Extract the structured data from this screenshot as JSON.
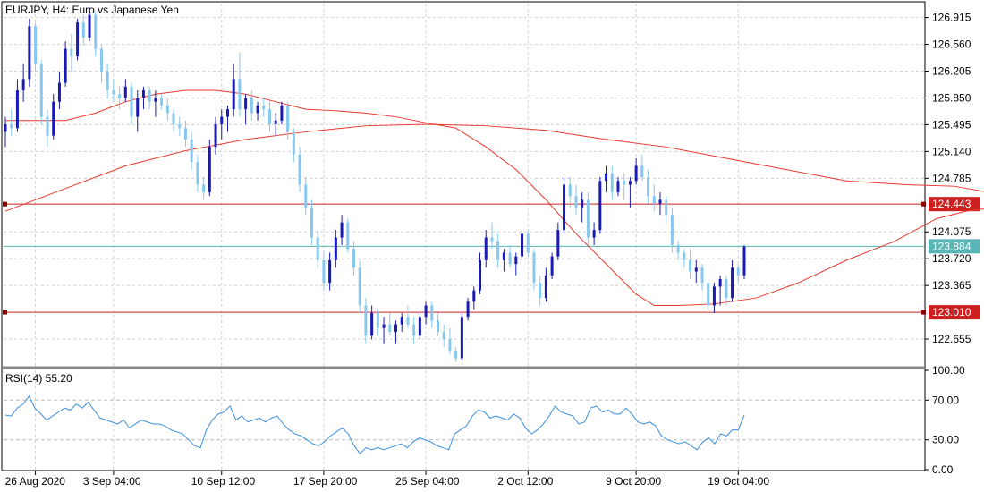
{
  "header": {
    "title": "EURJPY, H4:  Euro vs Japanese Yen",
    "rsi_label": "RSI(14) 55.20"
  },
  "colors": {
    "bull": "#1a1ab5",
    "bear": "#87c8ee",
    "ma": "#e8392f",
    "level_line": "#cc2020",
    "price_line": "#5ab4b4",
    "rsi_line": "#3a8ee0",
    "grid": "#d0d0d0"
  },
  "chart_data": [
    {
      "type": "candlestick",
      "name": "price",
      "ylim": [
        122.3,
        127.1
      ],
      "yticks": [
        "126.915",
        "126.560",
        "126.205",
        "125.850",
        "125.495",
        "125.140",
        "124.785",
        "124.075",
        "123.720",
        "123.365",
        "122.655"
      ],
      "xticks": [
        "26 Aug 2020",
        "3 Sep 04:00",
        "10 Sep 12:00",
        "17 Sep 20:00",
        "25 Sep 04:00",
        "2 Oct 12:00",
        "9 Oct 20:00",
        "19 Oct 04:00"
      ],
      "horizontal_levels": [
        {
          "value": 124.443,
          "label": "124.443",
          "kind": "level"
        },
        {
          "value": 123.884,
          "label": "123.884",
          "kind": "current"
        },
        {
          "value": 123.01,
          "label": "123.010",
          "kind": "level"
        }
      ],
      "series": [
        {
          "type": "line",
          "role": "moving-average",
          "values": [
            [
              0,
              125.55
            ],
            [
              5,
              125.55
            ],
            [
              10,
              125.55
            ],
            [
              15,
              125.65
            ],
            [
              20,
              125.8
            ],
            [
              25,
              125.9
            ],
            [
              30,
              125.95
            ],
            [
              35,
              125.95
            ],
            [
              40,
              125.9
            ],
            [
              45,
              125.8
            ],
            [
              50,
              125.7
            ],
            [
              55,
              125.68
            ],
            [
              60,
              125.65
            ],
            [
              65,
              125.6
            ],
            [
              70,
              125.52
            ],
            [
              75,
              125.45
            ],
            [
              80,
              125.2
            ],
            [
              85,
              124.9
            ],
            [
              90,
              124.5
            ],
            [
              95,
              124.05
            ],
            [
              100,
              123.65
            ],
            [
              105,
              123.25
            ],
            [
              108,
              123.1
            ],
            [
              112,
              123.1
            ],
            [
              118,
              123.12
            ],
            [
              125,
              123.2
            ],
            [
              132,
              123.4
            ],
            [
              140,
              123.7
            ],
            [
              148,
              123.95
            ],
            [
              155,
              124.25
            ],
            [
              160,
              124.35
            ],
            [
              165,
              124.4
            ],
            [
              170,
              124.35
            ],
            [
              175,
              124.2
            ]
          ]
        },
        {
          "type": "line",
          "role": "moving-average",
          "values": [
            [
              0,
              124.35
            ],
            [
              10,
              124.65
            ],
            [
              20,
              124.95
            ],
            [
              30,
              125.15
            ],
            [
              40,
              125.3
            ],
            [
              50,
              125.4
            ],
            [
              60,
              125.48
            ],
            [
              70,
              125.5
            ],
            [
              80,
              125.48
            ],
            [
              90,
              125.42
            ],
            [
              100,
              125.3
            ],
            [
              110,
              125.2
            ],
            [
              120,
              125.05
            ],
            [
              130,
              124.9
            ],
            [
              140,
              124.75
            ],
            [
              150,
              124.7
            ],
            [
              158,
              124.68
            ],
            [
              165,
              124.58
            ],
            [
              170,
              124.48
            ],
            [
              175,
              124.32
            ]
          ]
        }
      ],
      "candles": [
        [
          125.4,
          125.6,
          125.2,
          125.5
        ],
        [
          125.5,
          125.7,
          125.35,
          125.45
        ],
        [
          125.45,
          126.1,
          125.4,
          125.95
        ],
        [
          125.95,
          126.3,
          125.8,
          126.1
        ],
        [
          126.1,
          126.9,
          126.0,
          126.8
        ],
        [
          126.8,
          126.85,
          126.2,
          126.3
        ],
        [
          126.3,
          126.35,
          125.5,
          125.6
        ],
        [
          125.6,
          125.7,
          125.2,
          125.35
        ],
        [
          125.35,
          125.9,
          125.3,
          125.8
        ],
        [
          125.8,
          126.2,
          125.7,
          126.05
        ],
        [
          126.05,
          126.6,
          126.0,
          126.5
        ],
        [
          126.5,
          126.7,
          126.2,
          126.4
        ],
        [
          126.4,
          126.9,
          126.35,
          126.85
        ],
        [
          126.85,
          126.95,
          126.55,
          126.65
        ],
        [
          126.65,
          127.05,
          126.6,
          126.95
        ],
        [
          126.95,
          127.0,
          126.4,
          126.5
        ],
        [
          126.5,
          126.55,
          126.05,
          126.2
        ],
        [
          126.2,
          126.3,
          125.85,
          125.95
        ],
        [
          125.95,
          126.1,
          125.8,
          125.9
        ],
        [
          125.9,
          126.0,
          125.7,
          125.85
        ],
        [
          125.85,
          126.1,
          125.8,
          126.0
        ],
        [
          126.0,
          126.05,
          125.5,
          125.6
        ],
        [
          125.6,
          125.95,
          125.4,
          125.85
        ],
        [
          125.85,
          126.0,
          125.7,
          125.95
        ],
        [
          125.95,
          126.0,
          125.7,
          125.8
        ],
        [
          125.8,
          125.95,
          125.6,
          125.85
        ],
        [
          125.85,
          125.9,
          125.7,
          125.75
        ],
        [
          125.75,
          125.85,
          125.55,
          125.65
        ],
        [
          125.65,
          125.7,
          125.4,
          125.5
        ],
        [
          125.5,
          125.6,
          125.35,
          125.45
        ],
        [
          125.45,
          125.55,
          125.2,
          125.3
        ],
        [
          125.3,
          125.4,
          124.9,
          125.0
        ],
        [
          125.0,
          125.1,
          124.6,
          124.7
        ],
        [
          124.7,
          124.8,
          124.5,
          124.6
        ],
        [
          124.6,
          125.3,
          124.55,
          125.2
        ],
        [
          125.2,
          125.6,
          125.1,
          125.5
        ],
        [
          125.5,
          125.7,
          125.3,
          125.6
        ],
        [
          125.6,
          125.75,
          125.4,
          125.7
        ],
        [
          125.7,
          126.3,
          125.6,
          126.1
        ],
        [
          126.1,
          126.45,
          125.6,
          125.7
        ],
        [
          125.7,
          125.9,
          125.5,
          125.85
        ],
        [
          125.85,
          125.95,
          125.55,
          125.65
        ],
        [
          125.65,
          125.8,
          125.55,
          125.75
        ],
        [
          125.75,
          125.85,
          125.6,
          125.7
        ],
        [
          125.7,
          125.8,
          125.4,
          125.5
        ],
        [
          125.5,
          125.65,
          125.35,
          125.55
        ],
        [
          125.55,
          125.8,
          125.5,
          125.75
        ],
        [
          125.75,
          125.8,
          125.3,
          125.4
        ],
        [
          125.4,
          125.45,
          125.0,
          125.1
        ],
        [
          125.1,
          125.2,
          124.6,
          124.7
        ],
        [
          124.7,
          124.8,
          124.3,
          124.4
        ],
        [
          124.4,
          124.5,
          123.9,
          124.0
        ],
        [
          124.0,
          124.1,
          123.6,
          123.7
        ],
        [
          123.7,
          123.8,
          123.3,
          123.4
        ],
        [
          123.4,
          123.8,
          123.3,
          123.7
        ],
        [
          123.7,
          124.1,
          123.6,
          124.0
        ],
        [
          124.0,
          124.3,
          123.9,
          124.2
        ],
        [
          124.2,
          124.25,
          123.8,
          123.85
        ],
        [
          123.85,
          123.95,
          123.5,
          123.6
        ],
        [
          123.6,
          123.7,
          123.0,
          123.1
        ],
        [
          123.1,
          123.2,
          122.6,
          122.7
        ],
        [
          122.7,
          123.1,
          122.65,
          123.0
        ],
        [
          123.0,
          123.05,
          122.7,
          122.8
        ],
        [
          122.8,
          122.95,
          122.6,
          122.85
        ],
        [
          122.85,
          123.0,
          122.7,
          122.75
        ],
        [
          122.75,
          122.9,
          122.6,
          122.85
        ],
        [
          122.85,
          123.0,
          122.75,
          122.95
        ],
        [
          122.95,
          123.1,
          122.8,
          122.85
        ],
        [
          122.85,
          122.95,
          122.6,
          122.7
        ],
        [
          122.7,
          123.0,
          122.65,
          122.95
        ],
        [
          122.95,
          123.15,
          122.85,
          123.1
        ],
        [
          123.1,
          123.15,
          122.8,
          122.9
        ],
        [
          122.9,
          123.0,
          122.7,
          122.75
        ],
        [
          122.75,
          122.85,
          122.55,
          122.65
        ],
        [
          122.65,
          122.8,
          122.45,
          122.5
        ],
        [
          122.5,
          122.55,
          122.35,
          122.4
        ],
        [
          122.4,
          123.0,
          122.38,
          122.95
        ],
        [
          122.95,
          123.2,
          122.9,
          123.15
        ],
        [
          123.15,
          123.35,
          123.05,
          123.3
        ],
        [
          123.3,
          123.8,
          123.25,
          123.7
        ],
        [
          123.7,
          124.1,
          123.6,
          124.0
        ],
        [
          124.0,
          124.2,
          123.85,
          123.95
        ],
        [
          123.95,
          124.05,
          123.6,
          123.7
        ],
        [
          123.7,
          123.85,
          123.55,
          123.8
        ],
        [
          123.8,
          123.9,
          123.6,
          123.65
        ],
        [
          123.65,
          123.8,
          123.5,
          123.75
        ],
        [
          123.75,
          124.1,
          123.7,
          124.05
        ],
        [
          124.05,
          124.1,
          123.75,
          123.8
        ],
        [
          123.8,
          123.85,
          123.3,
          123.4
        ],
        [
          123.4,
          123.5,
          123.1,
          123.2
        ],
        [
          123.2,
          123.6,
          123.15,
          123.5
        ],
        [
          123.5,
          123.8,
          123.45,
          123.75
        ],
        [
          123.75,
          124.2,
          123.7,
          124.1
        ],
        [
          124.1,
          124.8,
          124.05,
          124.7
        ],
        [
          124.7,
          124.8,
          124.4,
          124.55
        ],
        [
          124.55,
          124.7,
          124.3,
          124.4
        ],
        [
          124.4,
          124.6,
          124.2,
          124.5
        ],
        [
          124.5,
          124.6,
          123.9,
          124.0
        ],
        [
          124.0,
          124.2,
          123.9,
          124.1
        ],
        [
          124.1,
          124.8,
          124.05,
          124.75
        ],
        [
          124.75,
          124.95,
          124.6,
          124.85
        ],
        [
          124.85,
          124.95,
          124.5,
          124.6
        ],
        [
          124.6,
          124.8,
          124.55,
          124.75
        ],
        [
          124.75,
          124.85,
          124.5,
          124.7
        ],
        [
          124.7,
          124.8,
          124.4,
          124.75
        ],
        [
          124.75,
          125.05,
          124.7,
          124.95
        ],
        [
          124.95,
          125.1,
          124.75,
          124.8
        ],
        [
          124.8,
          124.9,
          124.45,
          124.55
        ],
        [
          124.55,
          124.7,
          124.35,
          124.45
        ],
        [
          124.45,
          124.6,
          124.3,
          124.5
        ],
        [
          124.5,
          124.55,
          124.2,
          124.3
        ],
        [
          124.3,
          124.4,
          123.8,
          123.9
        ],
        [
          123.9,
          123.95,
          123.7,
          123.8
        ],
        [
          123.8,
          123.85,
          123.6,
          123.7
        ],
        [
          123.7,
          123.85,
          123.45,
          123.55
        ],
        [
          123.55,
          123.7,
          123.4,
          123.6
        ],
        [
          123.6,
          123.65,
          123.3,
          123.4
        ],
        [
          123.4,
          123.45,
          123.05,
          123.1
        ],
        [
          123.1,
          123.4,
          123.0,
          123.35
        ],
        [
          123.35,
          123.5,
          123.1,
          123.45
        ],
        [
          123.45,
          123.5,
          123.1,
          123.2
        ],
        [
          123.2,
          123.7,
          123.15,
          123.6
        ],
        [
          123.6,
          123.65,
          123.4,
          123.5
        ],
        [
          123.5,
          123.9,
          123.45,
          123.88
        ]
      ]
    },
    {
      "type": "line",
      "name": "RSI(14)",
      "ylim": [
        0,
        100
      ],
      "yticks": [
        "100.00",
        "70.00",
        "30.00",
        "0.00"
      ],
      "levels": [
        70,
        30
      ],
      "values": [
        55,
        54,
        62,
        66,
        74,
        62,
        56,
        50,
        54,
        58,
        62,
        60,
        66,
        62,
        68,
        60,
        52,
        50,
        48,
        46,
        50,
        42,
        46,
        50,
        48,
        46,
        46,
        44,
        40,
        38,
        36,
        30,
        24,
        22,
        40,
        50,
        56,
        58,
        64,
        50,
        54,
        48,
        50,
        52,
        48,
        52,
        54,
        46,
        40,
        36,
        34,
        30,
        26,
        24,
        28,
        34,
        38,
        42,
        36,
        24,
        16,
        22,
        20,
        22,
        20,
        22,
        24,
        26,
        22,
        28,
        32,
        30,
        28,
        24,
        22,
        20,
        36,
        40,
        44,
        54,
        60,
        58,
        52,
        54,
        52,
        50,
        56,
        52,
        42,
        36,
        40,
        46,
        54,
        64,
        58,
        56,
        54,
        46,
        48,
        62,
        64,
        58,
        60,
        56,
        56,
        62,
        56,
        48,
        46,
        48,
        44,
        34,
        30,
        28,
        26,
        28,
        24,
        20,
        28,
        32,
        26,
        36,
        34,
        40,
        40,
        55
      ]
    }
  ]
}
